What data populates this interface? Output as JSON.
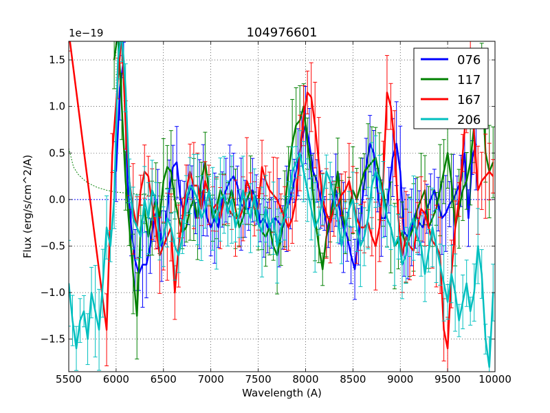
{
  "chart_data": {
    "type": "line",
    "title": "104976601",
    "xlabel": "Wavelength (A)",
    "ylabel": "Flux (erg/s/cm^2/A)",
    "y_offset_text": "1e−19",
    "xlim": [
      5500,
      10000
    ],
    "ylim": [
      -1.85,
      1.7
    ],
    "xticks": [
      5500,
      6000,
      6500,
      7000,
      7500,
      8000,
      8500,
      9000,
      9500,
      10000
    ],
    "xtick_labels": [
      "5500",
      "6000",
      "6500",
      "7000",
      "7500",
      "8000",
      "8500",
      "9000",
      "9500",
      "10000"
    ],
    "yticks": [
      -1.5,
      -1.0,
      -0.5,
      0.0,
      0.5,
      1.0,
      1.5
    ],
    "ytick_labels": [
      "−1.5",
      "−1.0",
      "−0.5",
      "0.0",
      "0.5",
      "1.0",
      "1.5"
    ],
    "grid": true,
    "legend_position": "top-right",
    "zero_line": {
      "y": 0.0,
      "color": "#0000ff",
      "style": "dotted"
    },
    "model_curve": {
      "color": "#008000",
      "style": "dotted",
      "x": [
        5500,
        5550,
        5600,
        5650,
        5700,
        5800,
        5900,
        6000,
        6100,
        6200,
        6300,
        6400,
        6600,
        6800,
        7000,
        7500,
        8000,
        8500
      ],
      "y": [
        0.55,
        0.35,
        0.27,
        0.22,
        0.18,
        0.13,
        0.1,
        0.08,
        0.07,
        0.06,
        0.05,
        0.04,
        0.03,
        0.02,
        0.015,
        0.01,
        0.005,
        0.0
      ]
    },
    "series": [
      {
        "name": "076",
        "color": "#0000ff",
        "x": [
          6000,
          6040,
          6080,
          6120,
          6160,
          6200,
          6240,
          6280,
          6320,
          6360,
          6400,
          6440,
          6480,
          6520,
          6560,
          6600,
          6640,
          6680,
          6720,
          6760,
          6800,
          6840,
          6880,
          6920,
          6960,
          7000,
          7040,
          7080,
          7120,
          7160,
          7200,
          7240,
          7280,
          7320,
          7360,
          7400,
          7440,
          7480,
          7520,
          7560,
          7600,
          7640,
          7680,
          7720,
          7760,
          7800,
          7840,
          7880,
          7920,
          7960,
          8000,
          8040,
          8080,
          8120,
          8160,
          8200,
          8240,
          8280,
          8320,
          8360,
          8400,
          8440,
          8480,
          8520,
          8560,
          8600,
          8640,
          8680,
          8720,
          8760,
          8800,
          8840,
          8880,
          8920,
          8960,
          9000,
          9040,
          9080,
          9120,
          9160,
          9200,
          9240,
          9280,
          9320,
          9360,
          9400,
          9440,
          9480,
          9520,
          9560,
          9600,
          9640,
          9680,
          9720,
          9760,
          9800
        ],
        "y": [
          0.3,
          1.2,
          1.5,
          0.2,
          -0.3,
          -0.65,
          -0.8,
          -0.7,
          -0.7,
          -0.5,
          -0.2,
          -0.1,
          -0.5,
          -0.3,
          0.1,
          0.35,
          0.4,
          0.0,
          -0.15,
          0.05,
          0.15,
          -0.2,
          -0.05,
          0.1,
          -0.2,
          -0.3,
          -0.2,
          -0.3,
          0.0,
          0.1,
          0.2,
          0.25,
          0.15,
          -0.05,
          -0.1,
          -0.1,
          0.1,
          0.0,
          -0.25,
          -0.2,
          -0.3,
          -0.25,
          -0.2,
          -0.25,
          -0.3,
          -0.1,
          0.0,
          0.2,
          0.4,
          0.65,
          0.8,
          0.6,
          0.3,
          0.2,
          0.0,
          -0.15,
          -0.35,
          -0.05,
          0.1,
          -0.1,
          -0.3,
          -0.4,
          -0.6,
          -0.75,
          -0.4,
          0.0,
          0.35,
          0.6,
          0.5,
          0.1,
          -0.2,
          -0.2,
          0.1,
          0.45,
          0.6,
          0.3,
          -0.35,
          -0.4,
          -0.3,
          -0.15,
          -0.25,
          -0.3,
          -0.1,
          0.0,
          0.1,
          -0.05,
          -0.2,
          -0.15,
          -0.05,
          0.0,
          0.1,
          0.2,
          0.5,
          -0.2,
          0.45,
          0.6
        ]
      },
      {
        "name": "117",
        "color": "#008000",
        "x": [
          5980,
          6020,
          6060,
          6100,
          6140,
          6180,
          6220,
          6260,
          6300,
          6340,
          6380,
          6420,
          6460,
          6500,
          6540,
          6580,
          6620,
          6660,
          6700,
          6740,
          6780,
          6820,
          6860,
          6900,
          6940,
          6980,
          7020,
          7060,
          7100,
          7140,
          7180,
          7220,
          7260,
          7300,
          7340,
          7380,
          7420,
          7460,
          7500,
          7540,
          7580,
          7620,
          7660,
          7700,
          7740,
          7780,
          7820,
          7860,
          7900,
          7940,
          7980,
          8020,
          8060,
          8100,
          8140,
          8180,
          8220,
          8260,
          8300,
          8340,
          8380,
          8420,
          8460,
          8500,
          8540,
          8580,
          8620,
          8660,
          8700,
          8740,
          8780,
          8820,
          8860,
          8900,
          8940,
          8980,
          9020,
          9060,
          9100,
          9140,
          9180,
          9220,
          9260,
          9300,
          9340,
          9380,
          9420,
          9460,
          9500,
          9540,
          9580,
          9620,
          9660,
          9700,
          9740,
          9780,
          9820,
          9860,
          9900,
          9940,
          9980
        ],
        "y": [
          1.5,
          1.8,
          1.0,
          0.2,
          -0.3,
          -0.8,
          -1.25,
          -0.3,
          -0.1,
          -0.4,
          -0.2,
          0.0,
          -0.2,
          0.2,
          0.35,
          0.3,
          0.0,
          -0.2,
          -0.35,
          -0.3,
          -0.1,
          0.0,
          -0.2,
          0.2,
          0.4,
          0.1,
          -0.2,
          -0.1,
          0.1,
          0.0,
          -0.05,
          0.1,
          -0.1,
          -0.3,
          -0.2,
          0.0,
          0.1,
          -0.1,
          -0.25,
          -0.35,
          -0.4,
          -0.3,
          -0.5,
          -0.6,
          -0.4,
          -0.1,
          0.3,
          0.6,
          0.8,
          0.85,
          1.0,
          0.6,
          0.3,
          -0.2,
          -0.5,
          -0.75,
          -0.4,
          -0.2,
          0.0,
          0.3,
          -0.1,
          -0.3,
          -0.1,
          0.1,
          0.0,
          0.15,
          0.3,
          0.35,
          0.4,
          0.45,
          0.25,
          0.1,
          -0.2,
          -0.3,
          -0.5,
          -0.45,
          -0.35,
          -0.5,
          -0.4,
          -0.3,
          -0.1,
          0.0,
          0.1,
          -0.3,
          -0.2,
          -0.1,
          0.1,
          0.3,
          0.5,
          0.2,
          -0.3,
          -0.1,
          0.1,
          0.2,
          0.4,
          0.8,
          1.1,
          1.4,
          0.5,
          0.3,
          0.4
        ]
      },
      {
        "name": "167",
        "color": "#ff0000",
        "x": [
          5500,
          5900,
          5960,
          6020,
          6060,
          6100,
          6140,
          6180,
          6220,
          6260,
          6300,
          6340,
          6380,
          6420,
          6460,
          6500,
          6540,
          6580,
          6620,
          6660,
          6700,
          6740,
          6780,
          6820,
          6860,
          6900,
          6940,
          6980,
          7020,
          7060,
          7100,
          7140,
          7180,
          7220,
          7260,
          7300,
          7340,
          7380,
          7420,
          7460,
          7500,
          7540,
          7580,
          7620,
          7660,
          7700,
          7740,
          7780,
          7820,
          7860,
          7900,
          7940,
          7980,
          8020,
          8060,
          8100,
          8140,
          8180,
          8220,
          8260,
          8300,
          8340,
          8380,
          8420,
          8460,
          8500,
          8540,
          8580,
          8620,
          8660,
          8700,
          8740,
          8780,
          8820,
          8860,
          8900,
          8940,
          8980,
          9020,
          9060,
          9100,
          9140,
          9180,
          9220,
          9260,
          9300,
          9340,
          9380,
          9420,
          9460,
          9500,
          9540,
          9580,
          9620,
          9660,
          9700,
          9740,
          9780,
          9820,
          9860,
          9900,
          9940,
          9980
        ],
        "y": [
          1.8,
          -1.4,
          0.5,
          1.3,
          1.8,
          0.8,
          0.2,
          -0.1,
          -0.3,
          0.1,
          0.3,
          0.25,
          -0.05,
          -0.3,
          -0.6,
          -0.5,
          -0.4,
          -0.3,
          -1.0,
          -0.5,
          -0.2,
          0.1,
          0.3,
          0.15,
          0.15,
          -0.1,
          0.2,
          0.05,
          -0.1,
          -0.05,
          -0.2,
          0.0,
          -0.1,
          -0.15,
          -0.2,
          -0.2,
          -0.1,
          0.2,
          0.1,
          -0.1,
          -0.1,
          0.35,
          0.2,
          0.1,
          0.05,
          0.0,
          -0.1,
          -0.2,
          -0.3,
          -0.2,
          0.0,
          0.5,
          0.9,
          1.15,
          1.1,
          0.8,
          0.4,
          0.0,
          -0.15,
          -0.25,
          -0.1,
          -0.05,
          0.05,
          0.1,
          0.2,
          0.0,
          -0.2,
          -0.3,
          -0.3,
          -0.25,
          -0.4,
          -0.5,
          -0.3,
          0.2,
          1.15,
          1.0,
          0.6,
          -0.2,
          -0.6,
          -0.4,
          -0.5,
          -0.55,
          -0.3,
          -0.1,
          -0.15,
          -0.3,
          -0.45,
          -0.5,
          -0.6,
          -1.4,
          -1.6,
          -0.8,
          -0.3,
          0.0,
          0.5,
          1.0,
          1.6,
          0.7,
          0.1,
          0.2,
          0.25,
          0.3,
          0.25
        ]
      },
      {
        "name": "206",
        "color": "#00bfbf",
        "x": [
          5500,
          5540,
          5580,
          5620,
          5660,
          5700,
          5740,
          5780,
          5820,
          5860,
          5900,
          5940,
          5980,
          6020,
          6060,
          6100,
          6140,
          6180,
          6220,
          6260,
          6300,
          6340,
          6380,
          6420,
          6460,
          6500,
          6540,
          6580,
          6620,
          6660,
          6700,
          6740,
          6780,
          6820,
          6860,
          6900,
          6940,
          6980,
          7020,
          7060,
          7100,
          7140,
          7180,
          7220,
          7260,
          7300,
          7340,
          7380,
          7420,
          7460,
          7500,
          7540,
          7580,
          7620,
          7660,
          7700,
          7740,
          7780,
          7820,
          7860,
          7900,
          7940,
          7980,
          8020,
          8060,
          8100,
          8140,
          8180,
          8220,
          8260,
          8300,
          8340,
          8380,
          8420,
          8460,
          8500,
          8540,
          8580,
          8620,
          8660,
          8700,
          8740,
          8780,
          8820,
          8860,
          8900,
          8940,
          8980,
          9020,
          9060,
          9100,
          9140,
          9180,
          9220,
          9260,
          9300,
          9340,
          9380,
          9420,
          9460,
          9500,
          9540,
          9580,
          9620,
          9660,
          9700,
          9740,
          9780,
          9820,
          9860,
          9900,
          9940,
          9980
        ],
        "y": [
          -0.9,
          -1.3,
          -1.6,
          -1.3,
          -1.2,
          -1.5,
          -1.0,
          -1.2,
          -1.4,
          -0.9,
          -0.3,
          -0.5,
          0.0,
          1.5,
          1.8,
          1.2,
          0.2,
          -0.2,
          -0.3,
          -0.4,
          0.0,
          -0.2,
          0.1,
          0.0,
          -0.5,
          -0.4,
          -0.2,
          -0.3,
          -0.5,
          -0.6,
          -0.4,
          0.0,
          0.15,
          0.1,
          0.0,
          -0.2,
          -0.1,
          0.1,
          -0.1,
          -0.25,
          0.0,
          0.05,
          -0.15,
          0.0,
          -0.3,
          -0.15,
          0.1,
          -0.1,
          -0.2,
          0.05,
          -0.25,
          -0.35,
          -0.1,
          -0.3,
          -0.2,
          -0.5,
          -0.3,
          -0.2,
          0.0,
          0.3,
          0.4,
          0.5,
          0.3,
          0.1,
          -0.1,
          -0.3,
          -0.2,
          0.0,
          0.3,
          0.2,
          0.0,
          -0.2,
          -0.5,
          -0.3,
          -0.1,
          0.0,
          -0.3,
          -0.5,
          -0.4,
          -0.2,
          0.15,
          0.3,
          0.2,
          0.0,
          -0.2,
          -0.3,
          -0.5,
          -0.4,
          -0.7,
          -0.6,
          -0.3,
          -0.2,
          -0.4,
          -0.5,
          -0.8,
          -0.55,
          -0.3,
          -0.5,
          -0.7,
          -0.9,
          -1.1,
          -0.8,
          -1.0,
          -1.3,
          -1.1,
          -0.9,
          -1.2,
          -1.0,
          -0.5,
          -0.8,
          -1.5,
          -1.8,
          -1.0
        ]
      }
    ],
    "legend": [
      {
        "label": "076",
        "color": "#0000ff"
      },
      {
        "label": "117",
        "color": "#008000"
      },
      {
        "label": "167",
        "color": "#ff0000"
      },
      {
        "label": "206",
        "color": "#00bfbf"
      }
    ]
  }
}
